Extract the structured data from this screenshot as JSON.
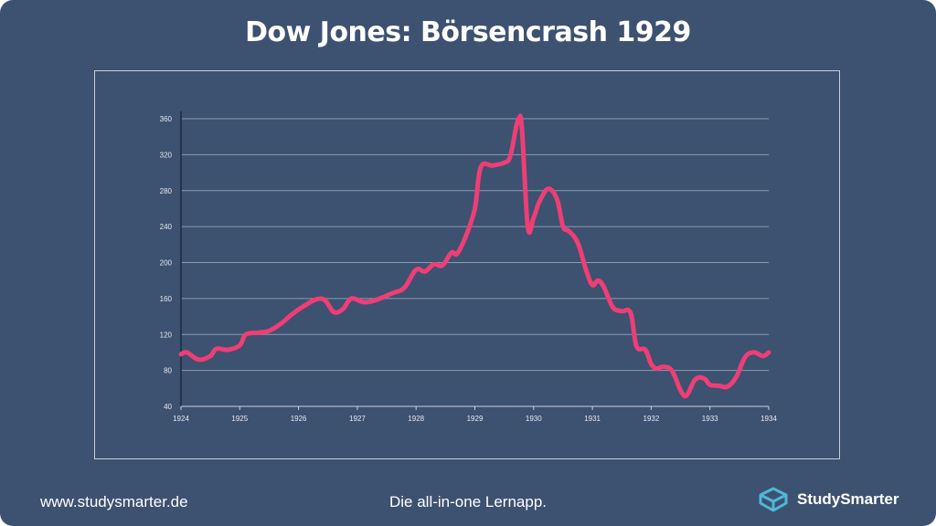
{
  "title": "Dow Jones: Börsencrash 1929",
  "footer": {
    "website": "www.studysmarter.de",
    "tagline": "Die all-in-one Lernapp.",
    "brand": "StudySmarter"
  },
  "colors": {
    "background": "#3d5170",
    "line": "#ee3e76",
    "grid": "#8c9bb2",
    "brand_icon": "#4fb8d9"
  },
  "icons": {
    "brand": "cube-logo-icon"
  },
  "chart_data": {
    "type": "line",
    "title": "Dow Jones: Börsencrash 1929",
    "xlabel": "",
    "ylabel": "",
    "xlim": [
      1924,
      1934
    ],
    "ylim": [
      40,
      360
    ],
    "x_ticks": [
      "1924",
      "1925",
      "1926",
      "1927",
      "1928",
      "1929",
      "1930",
      "1931",
      "1932",
      "1933",
      "1934"
    ],
    "y_ticks": [
      "40",
      "80",
      "120",
      "160",
      "200",
      "240",
      "280",
      "320",
      "360"
    ],
    "grid": true,
    "series": [
      {
        "x": [
          1924,
          1924.1,
          1924.3,
          1924.5,
          1924.6,
          1924.8,
          1925,
          1925.1,
          1925.3,
          1925.5,
          1925.7,
          1925.9,
          1926.1,
          1926.3,
          1926.45,
          1926.6,
          1926.75,
          1926.9,
          1927.1,
          1927.3,
          1927.6,
          1927.8,
          1928,
          1928.15,
          1928.3,
          1928.45,
          1928.6,
          1928.7,
          1928.85,
          1929,
          1929.1,
          1929.3,
          1929.5,
          1929.6,
          1929.7,
          1929.75,
          1929.8,
          1929.9,
          1930,
          1930.1,
          1930.25,
          1930.4,
          1930.5,
          1930.6,
          1930.75,
          1930.9,
          1931,
          1931.1,
          1931.2,
          1931.35,
          1931.5,
          1931.65,
          1931.75,
          1931.9,
          1932,
          1932.1,
          1932.2,
          1932.35,
          1932.5,
          1932.6,
          1932.75,
          1932.9,
          1933,
          1933.15,
          1933.3,
          1933.45,
          1933.6,
          1933.75,
          1933.9,
          1934
        ],
        "y": [
          98,
          100,
          92,
          96,
          104,
          103,
          108,
          120,
          122,
          124,
          132,
          143,
          152,
          159,
          158,
          145,
          148,
          160,
          156,
          158,
          166,
          172,
          192,
          190,
          198,
          197,
          211,
          210,
          230,
          260,
          306,
          308,
          311,
          318,
          350,
          360,
          350,
          240,
          250,
          268,
          282,
          270,
          240,
          235,
          222,
          190,
          175,
          180,
          172,
          150,
          146,
          144,
          107,
          103,
          87,
          82,
          84,
          80,
          58,
          52,
          70,
          71,
          64,
          63,
          62,
          73,
          95,
          100,
          96,
          100
        ]
      }
    ]
  }
}
